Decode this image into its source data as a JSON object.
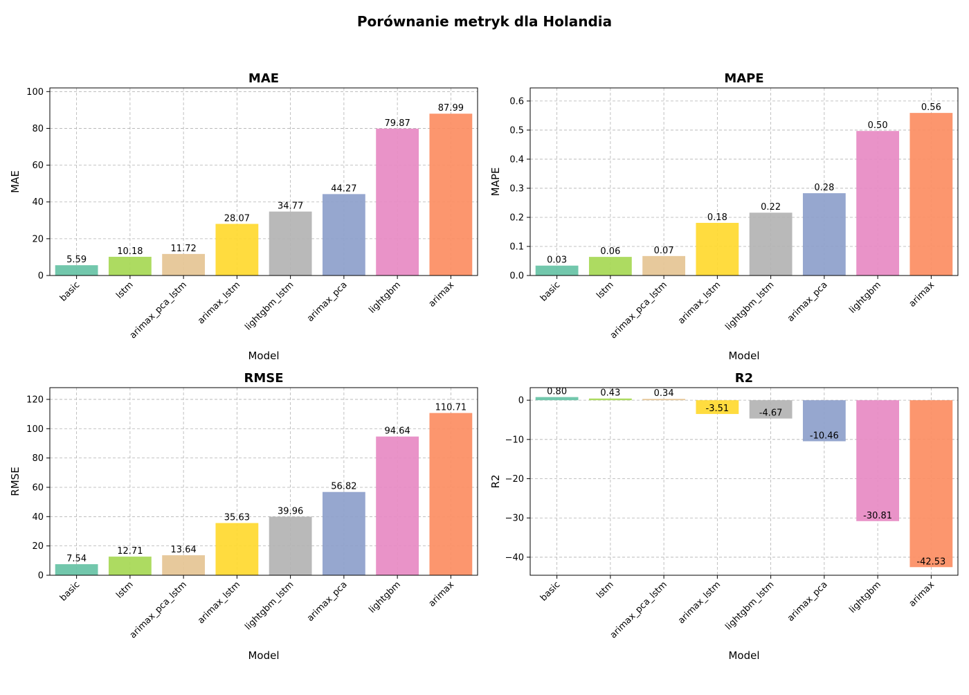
{
  "figure": {
    "title": "Porównanie metryk dla Holandia"
  },
  "chart_data": [
    {
      "type": "bar",
      "title": "MAE",
      "xlabel": "Model",
      "ylabel": "MAE",
      "categories": [
        "basic",
        "lstm",
        "arimax_pca_lstm",
        "arimax_lstm",
        "lightgbm_lstm",
        "arimax_pca",
        "lightgbm",
        "arimax"
      ],
      "values": [
        5.59,
        10.18,
        11.72,
        28.07,
        34.77,
        44.27,
        79.87,
        87.99
      ],
      "value_labels": [
        "5.59",
        "10.18",
        "11.72",
        "28.07",
        "34.77",
        "44.27",
        "79.87",
        "87.99"
      ],
      "ylim": [
        0,
        102
      ],
      "yticks": [
        0,
        20,
        40,
        60,
        80,
        100
      ],
      "ytick_labels": [
        "0",
        "20",
        "40",
        "60",
        "80",
        "100"
      ],
      "grid": true
    },
    {
      "type": "bar",
      "title": "MAPE",
      "xlabel": "Model",
      "ylabel": "MAPE",
      "categories": [
        "basic",
        "lstm",
        "arimax_pca_lstm",
        "arimax_lstm",
        "lightgbm_lstm",
        "arimax_pca",
        "lightgbm",
        "arimax"
      ],
      "values": [
        0.034,
        0.064,
        0.067,
        0.181,
        0.216,
        0.283,
        0.497,
        0.559
      ],
      "value_labels": [
        "0.03",
        "0.06",
        "0.07",
        "0.18",
        "0.22",
        "0.28",
        "0.50",
        "0.56"
      ],
      "ylim": [
        0,
        0.645
      ],
      "yticks": [
        0.0,
        0.1,
        0.2,
        0.3,
        0.4,
        0.5,
        0.6
      ],
      "ytick_labels": [
        "0.0",
        "0.1",
        "0.2",
        "0.3",
        "0.4",
        "0.5",
        "0.6"
      ],
      "grid": true
    },
    {
      "type": "bar",
      "title": "RMSE",
      "xlabel": "Model",
      "ylabel": "RMSE",
      "categories": [
        "basic",
        "lstm",
        "arimax_pca_lstm",
        "arimax_lstm",
        "lightgbm_lstm",
        "arimax_pca",
        "lightgbm",
        "arimax"
      ],
      "values": [
        7.54,
        12.71,
        13.64,
        35.63,
        39.96,
        56.82,
        94.64,
        110.71
      ],
      "value_labels": [
        "7.54",
        "12.71",
        "13.64",
        "35.63",
        "39.96",
        "56.82",
        "94.64",
        "110.71"
      ],
      "ylim": [
        0,
        128
      ],
      "yticks": [
        0,
        20,
        40,
        60,
        80,
        100,
        120
      ],
      "ytick_labels": [
        "0",
        "20",
        "40",
        "60",
        "80",
        "100",
        "120"
      ],
      "grid": true
    },
    {
      "type": "bar",
      "title": "R2",
      "xlabel": "Model",
      "ylabel": "R2",
      "categories": [
        "basic",
        "lstm",
        "arimax_pca_lstm",
        "arimax_lstm",
        "lightgbm_lstm",
        "arimax_pca",
        "lightgbm",
        "arimax"
      ],
      "values": [
        0.8,
        0.43,
        0.34,
        -3.51,
        -4.67,
        -10.46,
        -30.81,
        -42.53
      ],
      "value_labels": [
        "0.80",
        "0.43",
        "0.34",
        "-3.51",
        "-4.67",
        "-10.46",
        "-30.81",
        "-42.53"
      ],
      "ylim": [
        -44.6,
        3.2
      ],
      "yticks": [
        0,
        -10,
        -20,
        -30,
        -40
      ],
      "ytick_labels": [
        "0",
        "−10",
        "−20",
        "−30",
        "−40"
      ],
      "grid": true
    }
  ],
  "colors": {
    "bars": [
      "#66c2a5",
      "#a6d854",
      "#e5c494",
      "#ffd92f",
      "#b3b3b3",
      "#8da0cb",
      "#e78ac3",
      "#fc8d62"
    ],
    "bar_opacity": 0.92
  }
}
